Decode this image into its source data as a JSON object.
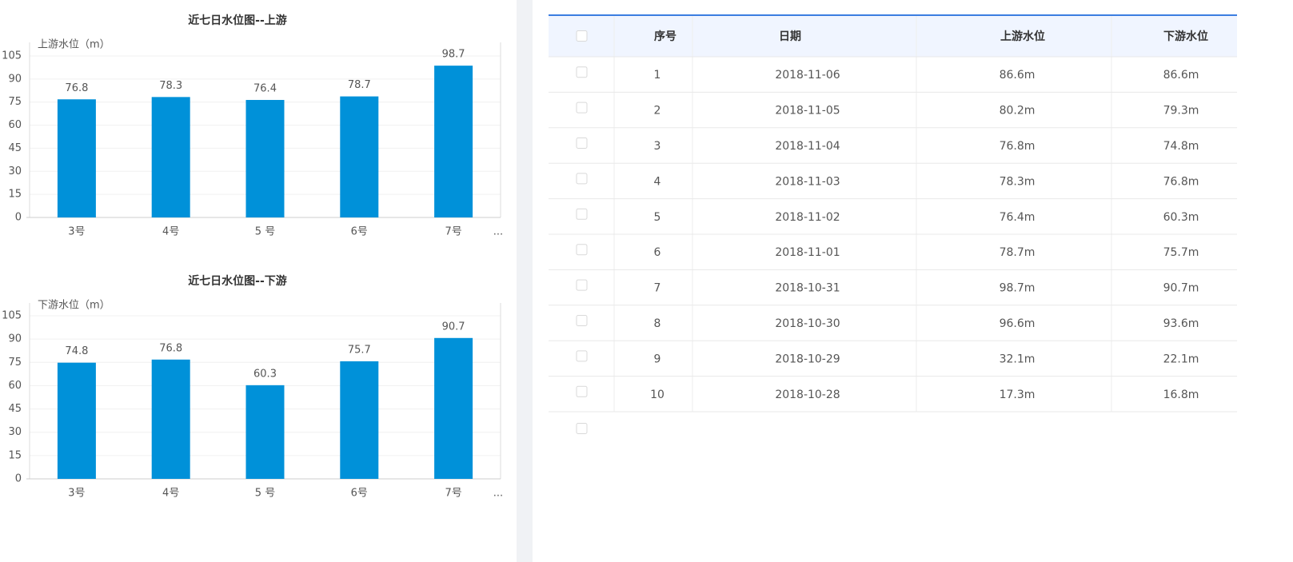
{
  "chart_data": [
    {
      "type": "bar",
      "title": "近七日水位图--上游",
      "y_label": "上游水位（m）",
      "categories": [
        "3号",
        "4号",
        "5 号",
        "6号",
        "7号"
      ],
      "values": [
        76.8,
        78.3,
        76.4,
        78.7,
        98.7
      ],
      "color": "#0091d9",
      "ylim": [
        0,
        105
      ],
      "yticks": [
        0,
        15,
        30,
        45,
        60,
        75,
        90,
        105
      ],
      "grid": true,
      "axis_more": "..."
    },
    {
      "type": "bar",
      "title": "近七日水位图--下游",
      "y_label": "下游水位（m）",
      "categories": [
        "3号",
        "4号",
        "5 号",
        "6号",
        "7号"
      ],
      "values": [
        74.8,
        76.8,
        60.3,
        75.7,
        90.7
      ],
      "color": "#0091d9",
      "ylim": [
        0,
        105
      ],
      "yticks": [
        0,
        15,
        30,
        45,
        60,
        75,
        90,
        105
      ],
      "grid": true,
      "axis_more": "..."
    }
  ],
  "table": {
    "headers": [
      "序号",
      "日期",
      "上游水位",
      "下游水位"
    ],
    "rows": [
      [
        "1",
        "2018-11-06",
        "86.6m",
        "86.6m"
      ],
      [
        "2",
        "2018-11-05",
        "80.2m",
        "79.3m"
      ],
      [
        "3",
        "2018-11-04",
        "76.8m",
        "74.8m"
      ],
      [
        "4",
        "2018-11-03",
        "78.3m",
        "76.8m"
      ],
      [
        "5",
        "2018-11-02",
        "76.4m",
        "60.3m"
      ],
      [
        "6",
        "2018-11-01",
        "78.7m",
        "75.7m"
      ],
      [
        "7",
        "2018-10-31",
        "98.7m",
        "90.7m"
      ],
      [
        "8",
        "2018-10-30",
        "96.6m",
        "93.6m"
      ],
      [
        "9",
        "2018-10-29",
        "32.1m",
        "22.1m"
      ],
      [
        "10",
        "2018-10-28",
        "17.3m",
        "16.8m"
      ]
    ]
  }
}
